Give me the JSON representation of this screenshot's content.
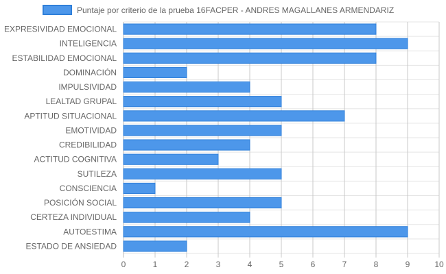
{
  "chart_data": {
    "type": "bar",
    "orientation": "horizontal",
    "categories": [
      "EXPRESIVIDAD EMOCIONAL",
      "INTELIGENCIA",
      "ESTABILIDAD EMOCIONAL",
      "DOMINACIÓN",
      "IMPULSIVIDAD",
      "LEALTAD GRUPAL",
      "APTITUD SITUACIONAL",
      "EMOTIVIDAD",
      "CREDIBILIDAD",
      "ACTITUD COGNITIVA",
      "SUTILEZA",
      "CONSCIENCIA",
      "POSICIÓN SOCIAL",
      "CERTEZA INDIVIDUAL",
      "AUTOESTIMA",
      "ESTADO DE ANSIEDAD"
    ],
    "series": [
      {
        "name": "Puntaje por criterio de la prueba 16FACPER - ANDRES MAGALLANES ARMENDARIZ",
        "values": [
          8,
          9,
          8,
          2,
          4,
          5,
          7,
          5,
          4,
          3,
          5,
          1,
          5,
          4,
          9,
          2
        ],
        "color": "#4d97ea",
        "border_color": "#2f7fd9"
      }
    ],
    "title": "",
    "xlabel": "",
    "ylabel": "",
    "xlim": [
      0,
      10
    ],
    "x_ticks": [
      "0",
      "1",
      "2",
      "3",
      "4",
      "5",
      "6",
      "7",
      "8",
      "9",
      "10"
    ],
    "grid": true,
    "legend_position": "top-center"
  }
}
